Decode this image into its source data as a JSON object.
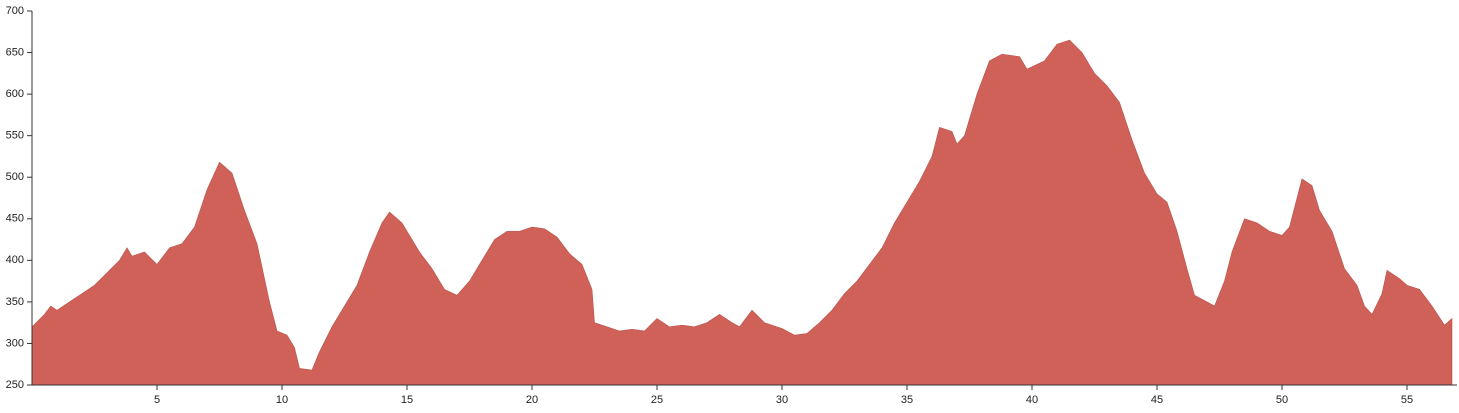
{
  "chart_data": {
    "type": "area",
    "x": [
      0,
      0.5,
      0.75,
      1,
      1.5,
      2,
      2.5,
      3,
      3.5,
      3.8,
      4,
      4.5,
      5,
      5.5,
      6,
      6.5,
      7,
      7.5,
      8,
      8.5,
      9,
      9.5,
      9.8,
      10.2,
      10.5,
      10.7,
      11.2,
      11.5,
      12,
      12.5,
      13,
      13.5,
      14,
      14.3,
      14.8,
      15.5,
      16,
      16.5,
      17,
      17.5,
      18,
      18.5,
      19,
      19.5,
      20,
      20.5,
      21,
      21.5,
      22,
      22.4,
      22.5,
      23,
      23.5,
      24,
      24.5,
      25,
      25.5,
      26,
      26.5,
      27,
      27.5,
      28,
      28.3,
      28.8,
      29.3,
      30,
      30.5,
      31,
      31.5,
      32,
      32.5,
      33,
      33.5,
      34,
      34.5,
      35,
      35.5,
      36,
      36.3,
      36.8,
      37,
      37.3,
      37.8,
      38.3,
      38.8,
      39.5,
      39.8,
      40.5,
      41,
      41.5,
      42,
      42.5,
      43,
      43.5,
      44,
      44.5,
      45,
      45.4,
      45.8,
      46.2,
      46.5,
      47,
      47.3,
      47.7,
      48,
      48.5,
      49,
      49.5,
      50,
      50.3,
      50.8,
      51.2,
      51.5,
      52,
      52.5,
      53,
      53.3,
      53.6,
      54,
      54.2,
      54.7,
      55,
      55.5,
      56,
      56.5,
      56.8
    ],
    "values": [
      320,
      335,
      345,
      340,
      350,
      360,
      370,
      385,
      400,
      415,
      405,
      410,
      395,
      415,
      420,
      440,
      485,
      518,
      505,
      460,
      420,
      350,
      315,
      310,
      295,
      270,
      268,
      290,
      320,
      345,
      370,
      410,
      445,
      458,
      445,
      410,
      390,
      365,
      358,
      375,
      400,
      425,
      435,
      435,
      440,
      438,
      428,
      408,
      395,
      365,
      325,
      320,
      315,
      317,
      315,
      330,
      320,
      322,
      320,
      325,
      335,
      325,
      320,
      340,
      325,
      318,
      310,
      312,
      325,
      340,
      360,
      375,
      395,
      415,
      445,
      470,
      495,
      525,
      560,
      555,
      540,
      550,
      600,
      640,
      648,
      645,
      630,
      640,
      660,
      665,
      650,
      625,
      610,
      590,
      545,
      505,
      480,
      470,
      435,
      390,
      358,
      350,
      345,
      375,
      410,
      450,
      445,
      435,
      430,
      440,
      498,
      490,
      460,
      435,
      390,
      370,
      345,
      335,
      360,
      388,
      378,
      370,
      365,
      345,
      322,
      330
    ],
    "color": "#cf6158",
    "xlim": [
      0,
      57
    ],
    "xticks": [
      5,
      10,
      15,
      20,
      25,
      30,
      35,
      40,
      45,
      50,
      55
    ],
    "ylim": [
      250,
      700
    ],
    "yticks": [
      250,
      300,
      350,
      400,
      450,
      500,
      550,
      600,
      650,
      700
    ]
  }
}
